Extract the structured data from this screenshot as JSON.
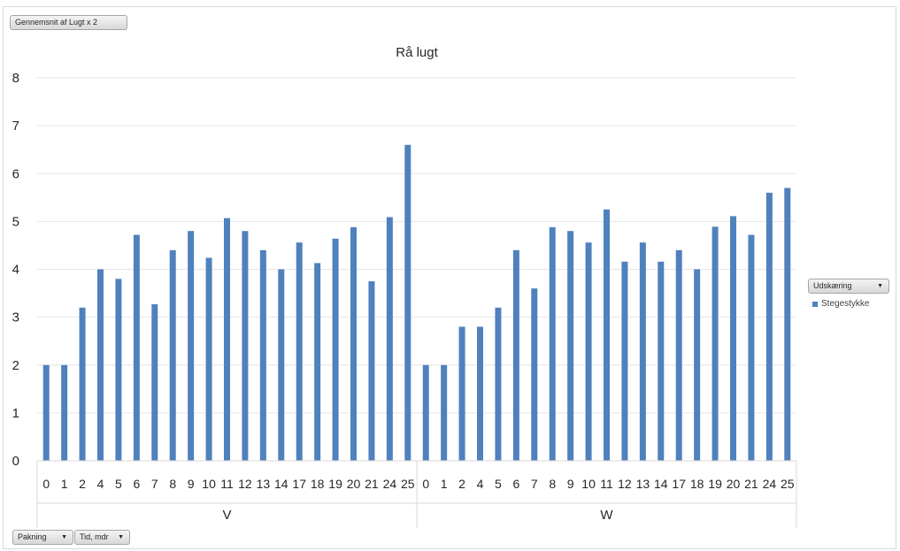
{
  "value_field_label": "Gennemsnit af Lugt x 2",
  "legend_field_label": "Udskæring",
  "axis_field_labels": [
    "Pakning",
    "Tid, mdr"
  ],
  "colors": {
    "series": "#4f81bd",
    "grid": "#e6e6e6",
    "axis": "#d9d9d9"
  },
  "icons": {
    "dropdown": "dropdown-arrow-icon",
    "filter": "filter-icon"
  },
  "chart_data": {
    "type": "bar",
    "title": "Rå lugt",
    "ylim": [
      0,
      8
    ],
    "yticks": [
      "0",
      "1",
      "2",
      "3",
      "4",
      "5",
      "6",
      "7",
      "8"
    ],
    "grid": true,
    "legend_position": "right",
    "groups": [
      {
        "label": "V",
        "categories": [
          "0",
          "1",
          "2",
          "4",
          "5",
          "6",
          "7",
          "8",
          "9",
          "10",
          "11",
          "12",
          "13",
          "14",
          "17",
          "18",
          "19",
          "20",
          "21",
          "24",
          "25"
        ],
        "values": [
          2,
          2,
          3.2,
          4,
          3.8,
          4.72,
          3.27,
          4.4,
          4.8,
          4.24,
          5.07,
          4.8,
          4.4,
          4,
          4.56,
          4.13,
          4.64,
          4.88,
          3.75,
          5.09,
          6.6
        ]
      },
      {
        "label": "W",
        "categories": [
          "0",
          "1",
          "2",
          "4",
          "5",
          "6",
          "7",
          "8",
          "9",
          "10",
          "11",
          "12",
          "13",
          "14",
          "17",
          "18",
          "19",
          "20",
          "21",
          "24",
          "25"
        ],
        "values": [
          2,
          2,
          2.8,
          2.8,
          3.2,
          4.4,
          3.6,
          4.88,
          4.8,
          4.56,
          5.25,
          4.16,
          4.56,
          4.16,
          4.4,
          4,
          4.89,
          5.11,
          4.72,
          5.6,
          5.7
        ]
      }
    ],
    "series": [
      {
        "name": "Stegestykke"
      }
    ]
  }
}
